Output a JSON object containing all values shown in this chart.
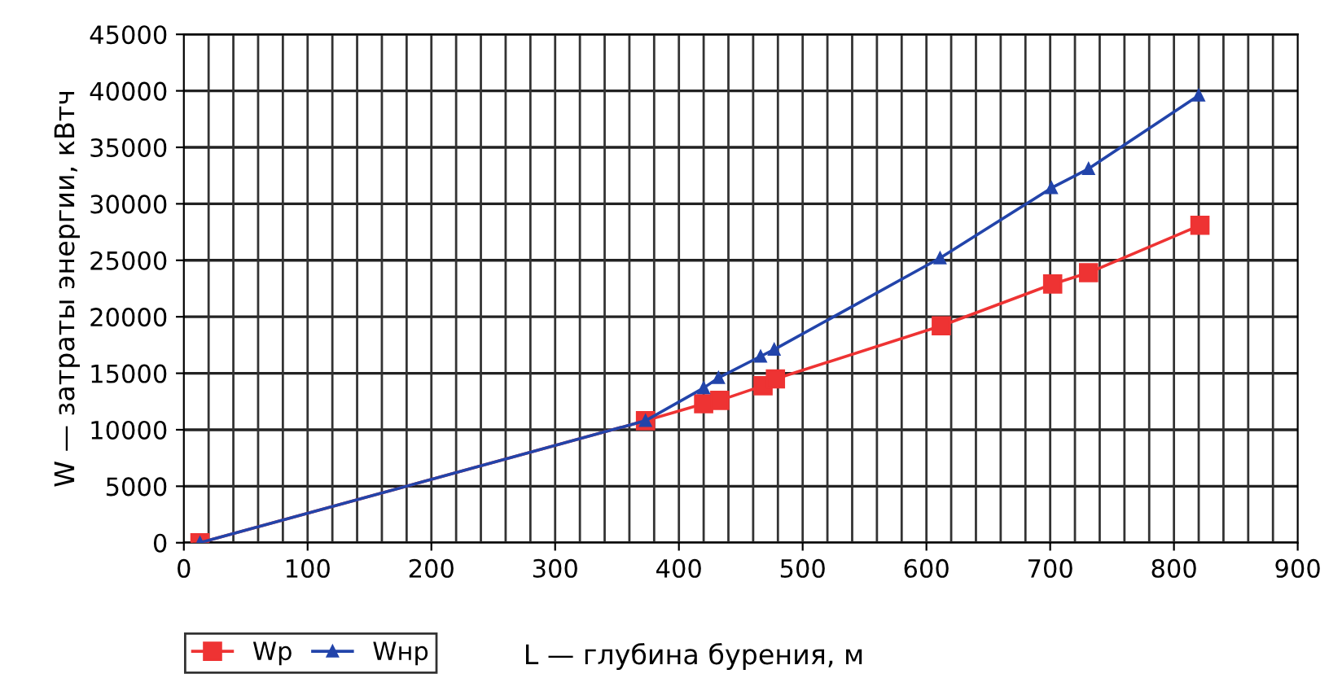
{
  "chart_data": {
    "type": "line",
    "xlabel": "L — глубина бурения, м",
    "ylabel": "W — затраты энергии, кВтч",
    "xlim": [
      0,
      900
    ],
    "xticks": [
      0,
      100,
      200,
      300,
      400,
      500,
      600,
      700,
      800,
      900
    ],
    "ylim": [
      0,
      45000
    ],
    "yticks": [
      0,
      5000,
      10000,
      15000,
      20000,
      25000,
      30000,
      35000,
      40000,
      45000
    ],
    "grid": true,
    "legend": "bottom left",
    "series": [
      {
        "name": "Wр",
        "color": "#ee3333",
        "marker": "square",
        "x": [
          13,
          373,
          420,
          433,
          468,
          478,
          612,
          702,
          731,
          821
        ],
        "values": [
          0,
          10800,
          12300,
          12600,
          13900,
          14500,
          19200,
          22900,
          23900,
          28100
        ]
      },
      {
        "name": "Wнр",
        "color": "#2244aa",
        "marker": "triangle",
        "x": [
          13,
          373,
          420,
          432,
          466,
          477,
          611,
          701,
          731,
          820
        ],
        "values": [
          0,
          10800,
          13700,
          14600,
          16500,
          17100,
          25200,
          31400,
          33100,
          39600
        ]
      }
    ]
  }
}
